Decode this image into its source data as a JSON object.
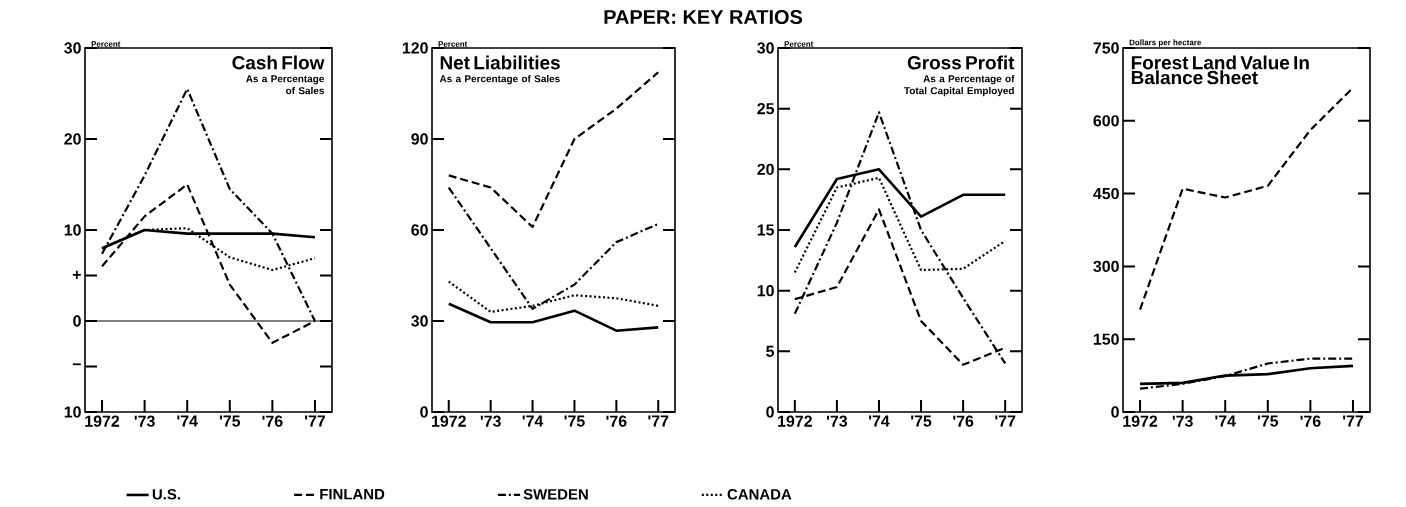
{
  "chart_data": [
    {
      "type": "line",
      "title": "Cash Flow",
      "subtitle": "As a Percentage of Sales",
      "ylabel": "Percent",
      "annotations": [
        "PAPER: KEY RATIOS"
      ],
      "categories": [
        "1972",
        "'73",
        "'74",
        "'75",
        "'76",
        "'77"
      ],
      "series": [
        {
          "name": "U.S.",
          "color": "#000000",
          "line_style": "solid",
          "values": [
            8,
            10,
            9.6,
            9.6,
            9.6,
            9.2
          ]
        },
        {
          "name": "FINLAND",
          "color": "#000000",
          "line_style": "dashed",
          "values": [
            6,
            11.5,
            15,
            4,
            -2.4,
            0
          ]
        },
        {
          "name": "SWEDEN",
          "color": "#000000",
          "line_style": "dashdot",
          "values": [
            7.4,
            16,
            25.5,
            14.5,
            9.6,
            0
          ]
        },
        {
          "name": "CANADA",
          "color": "#000000",
          "line_style": "dotted",
          "values": [
            8,
            10,
            10.2,
            7,
            5.6,
            6.9
          ]
        }
      ],
      "ylim": [
        -10,
        30
      ],
      "yticks": [
        {
          "value": -10,
          "label": "10"
        },
        {
          "value": -5,
          "label": "−"
        },
        0,
        {
          "value": 5,
          "label": "+"
        },
        10,
        20,
        30
      ],
      "ref_lines": [
        {
          "axis": "y",
          "value": 0
        }
      ],
      "legend": "bottom",
      "grid": false
    },
    {
      "type": "line",
      "title": "Net Liabilities",
      "subtitle": "As a Percentage of Sales",
      "ylabel": "Percent",
      "categories": [
        "1972",
        "'73",
        "'74",
        "'75",
        "'76",
        "'77"
      ],
      "series": [
        {
          "color": "#000000",
          "line_style": "solid",
          "values": [
            35.7,
            29.6,
            29.6,
            33.4,
            26.8,
            27.9
          ]
        },
        {
          "color": "#000000",
          "line_style": "dashed",
          "values": [
            78,
            74,
            61,
            90,
            100,
            112
          ]
        },
        {
          "color": "#000000",
          "line_style": "dashdot",
          "values": [
            74,
            54,
            34,
            42,
            56,
            62
          ]
        },
        {
          "color": "#000000",
          "line_style": "dotted",
          "values": [
            43,
            33,
            35,
            38.5,
            37.5,
            35
          ]
        }
      ],
      "ylim": [
        0,
        120
      ],
      "yticks": [
        0,
        30,
        60,
        90,
        120
      ],
      "grid": false
    },
    {
      "type": "line",
      "title": "Gross Profit",
      "subtitle": "As a Percentage of Total Capital Employed",
      "ylabel": "Percent",
      "categories": [
        "1972",
        "'73",
        "'74",
        "'75",
        "'76",
        "'77"
      ],
      "series": [
        {
          "color": "#000000",
          "line_style": "solid",
          "values": [
            13.6,
            19.2,
            20,
            16.1,
            17.9,
            17.9
          ]
        },
        {
          "color": "#000000",
          "line_style": "dashed",
          "values": [
            9.3,
            10.3,
            16.7,
            7.5,
            3.9,
            5.3
          ]
        },
        {
          "color": "#000000",
          "line_style": "dashdot",
          "values": [
            8.1,
            15.6,
            24.7,
            15,
            9.4,
            4
          ]
        },
        {
          "color": "#000000",
          "line_style": "dotted",
          "values": [
            11.5,
            18.5,
            19.3,
            11.7,
            11.8,
            14.1
          ]
        }
      ],
      "ylim": [
        0,
        30
      ],
      "yticks": [
        0,
        5,
        10,
        15,
        20,
        25,
        30
      ],
      "grid": false
    },
    {
      "type": "line",
      "title": "Forest Land Value In Balance Sheet",
      "ylabel": "Dollars per hectare",
      "categories": [
        "1972",
        "'73",
        "'74",
        "'75",
        "'76",
        "'77"
      ],
      "series": [
        {
          "color": "#000000",
          "line_style": "solid",
          "values": [
            58,
            60,
            75,
            78,
            90,
            95
          ]
        },
        {
          "color": "#000000",
          "line_style": "dashed",
          "values": [
            211,
            460,
            442,
            466,
            581,
            668
          ]
        },
        {
          "color": "#000000",
          "line_style": "dashdot",
          "values": [
            48,
            58,
            74,
            100,
            110,
            110
          ]
        }
      ],
      "ylim": [
        0,
        750
      ],
      "yticks": [
        0,
        150,
        300,
        450,
        600,
        750
      ],
      "grid": false
    }
  ]
}
